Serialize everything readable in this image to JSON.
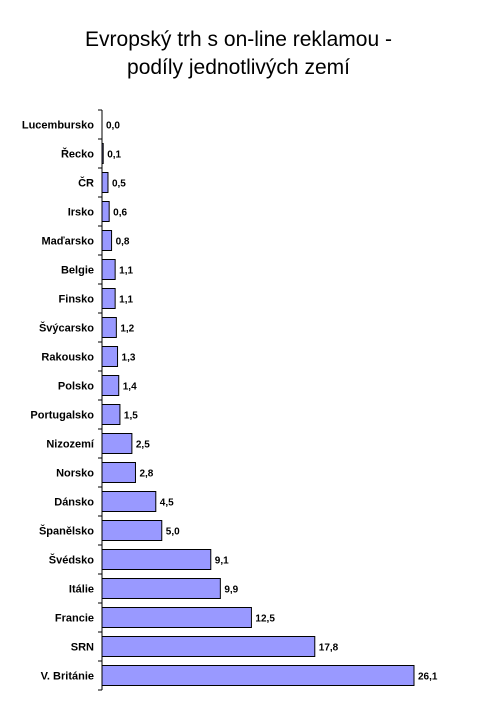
{
  "chart_data": {
    "type": "bar",
    "orientation": "horizontal",
    "title": "Evropský trh s on-line reklamou - podíly jednotlivých zemí",
    "title_lines": [
      "Evropský trh s on-line reklamou -",
      "podíly jednotlivých zemí"
    ],
    "categories": [
      "Lucembursko",
      "Řecko",
      "ČR",
      "Irsko",
      "Maďarsko",
      "Belgie",
      "Finsko",
      "Švýcarsko",
      "Rakousko",
      "Polsko",
      "Portugalsko",
      "Nizozemí",
      "Norsko",
      "Dánsko",
      "Španělsko",
      "Švédsko",
      "Itálie",
      "Francie",
      "SRN",
      "V. Británie"
    ],
    "values": [
      0.0,
      0.1,
      0.5,
      0.6,
      0.8,
      1.1,
      1.1,
      1.2,
      1.3,
      1.4,
      1.5,
      2.5,
      2.8,
      4.5,
      5.0,
      9.1,
      9.9,
      12.5,
      17.8,
      26.1
    ],
    "value_labels": [
      "0,0",
      "0,1",
      "0,5",
      "0,6",
      "0,8",
      "1,1",
      "1,1",
      "1,2",
      "1,3",
      "1,4",
      "1,5",
      "2,5",
      "2,8",
      "4,5",
      "5,0",
      "9,1",
      "9,9",
      "12,5",
      "17,8",
      "26,1"
    ],
    "xlabel": "",
    "ylabel": "",
    "xlim": [
      0,
      26.1
    ],
    "grid": false,
    "legend": "none",
    "bar_color": "#9999ff",
    "bar_edge_color": "#000000"
  }
}
